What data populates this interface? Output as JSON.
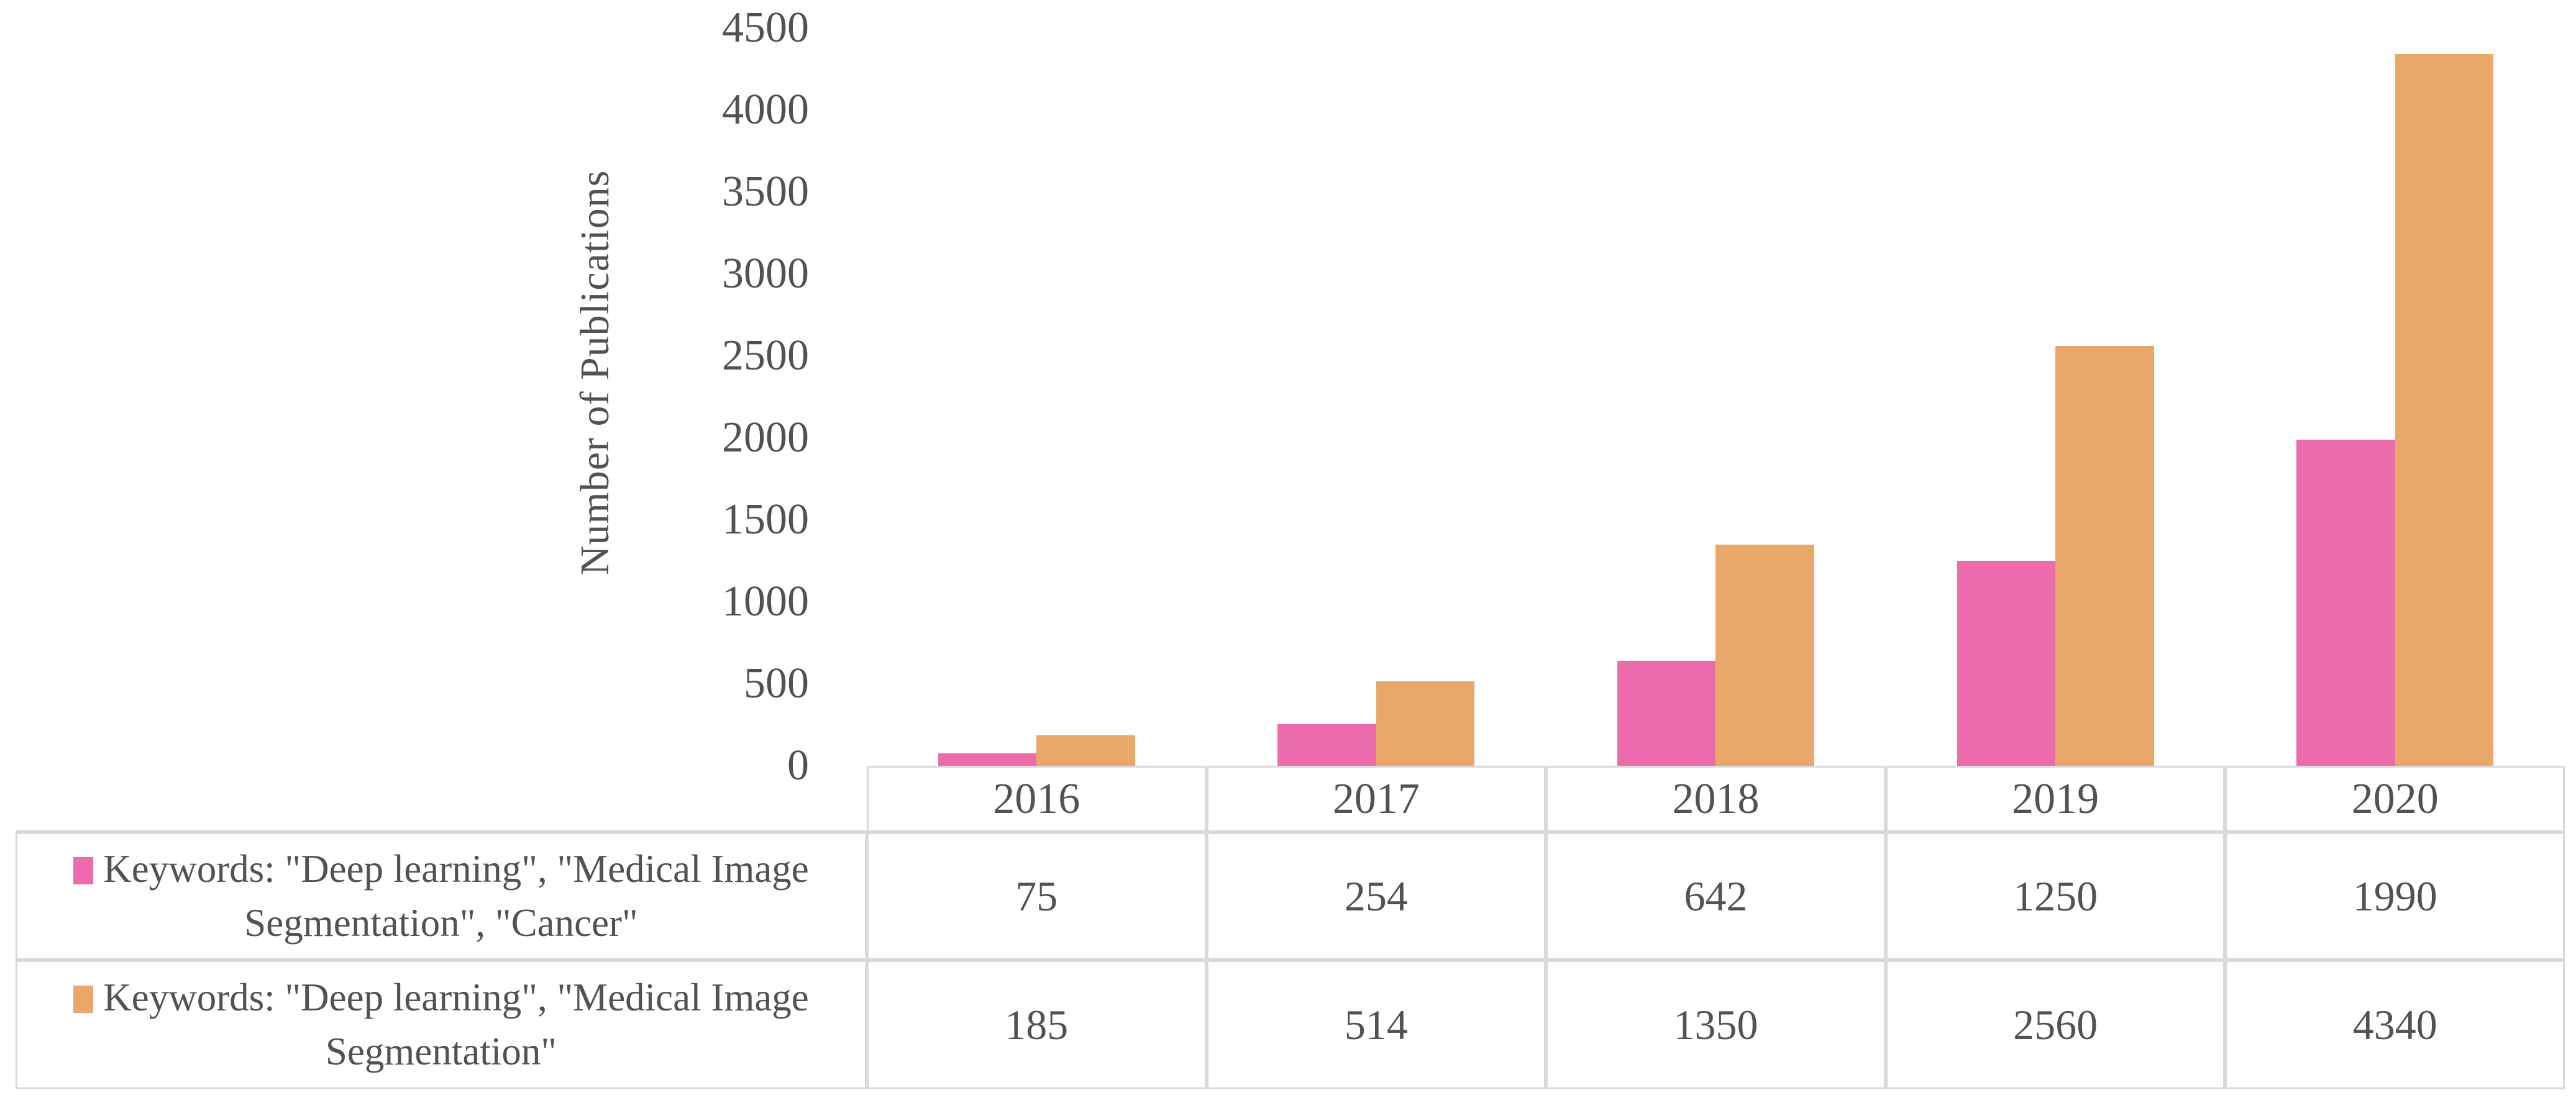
{
  "figure": {
    "colors": {
      "text": "#525252",
      "border": "#d9d9d9",
      "background": "#ffffff"
    }
  },
  "chart_data": {
    "type": "bar",
    "title": "",
    "xlabel": "",
    "ylabel": "Number of Publications",
    "categories": [
      "2016",
      "2017",
      "2018",
      "2019",
      "2020"
    ],
    "series": [
      {
        "name": "Keywords: \"Deep learning\", \"Medical Image Segmentation\", \"Cancer\"",
        "color": "#ec6bad",
        "values": [
          75,
          254,
          642,
          1250,
          1990
        ]
      },
      {
        "name": "Keywords: \"Deep learning\", \"Medical Image Segmentation\"",
        "color": "#e9a869",
        "values": [
          185,
          514,
          1350,
          2560,
          4340
        ]
      }
    ],
    "ylim": [
      0,
      4500
    ],
    "yticks": [
      0,
      500,
      1000,
      1500,
      2000,
      2500,
      3000,
      3500,
      4000,
      4500
    ],
    "grid": false,
    "legend_position": "table-left",
    "data_table_shown": true
  }
}
